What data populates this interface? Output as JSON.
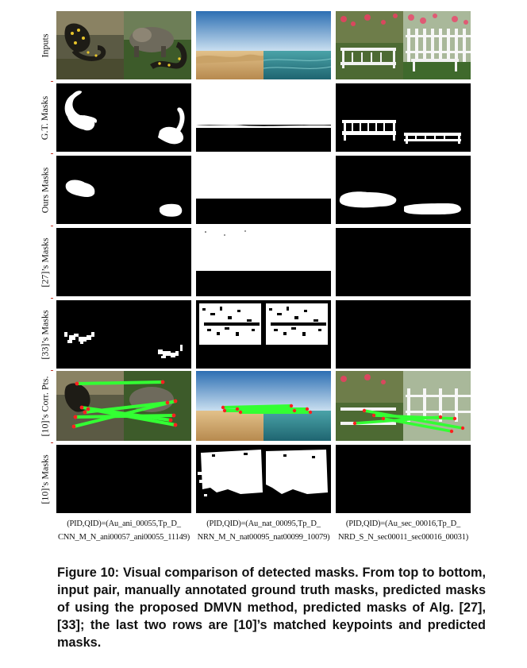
{
  "figure": {
    "rows": [
      {
        "key": "inputs",
        "label": "Inputs"
      },
      {
        "key": "gt",
        "label": "G.T. Masks"
      },
      {
        "key": "ours",
        "label": "Ours Masks"
      },
      {
        "key": "m27",
        "label": "[27]’s Masks"
      },
      {
        "key": "m33",
        "label": "[33]’s Masks"
      },
      {
        "key": "corr10",
        "label": "[10]’s Corr. Pts."
      },
      {
        "key": "m10",
        "label": "[10]’s Masks"
      }
    ],
    "columns": [
      {
        "key": "animal",
        "caption_line1": "(PID,QID)=(Au_ani_00055,Tp_D_",
        "caption_line2": "CNN_M_N_ani00057_ani00055_11149)"
      },
      {
        "key": "nature",
        "caption_line1": "(PID,QID)=(Au_nat_00095,Tp_D_",
        "caption_line2": "NRN_M_N_nat00095_nat00099_10079)"
      },
      {
        "key": "garden",
        "caption_line1": "(PID,QID)=(Au_sec_00016,Tp_D_",
        "caption_line2": "NRD_S_N_sec00011_sec00016_00031)"
      }
    ],
    "colors": {
      "mask_fg": "#ffffff",
      "mask_bg": "#000000",
      "keypoint": "#ff2020",
      "match_line": "#33ff33",
      "label_tick": "#c0392b"
    }
  },
  "caption": {
    "label": "Figure 10:",
    "text": "Visual comparison of detected masks. From top to bottom, input pair, manually annotated ground truth masks, predicted masks of using the proposed DMVN method, predicted masks of Alg. [27], [33]; the last two rows are [10]’s matched keypoints and predicted masks."
  }
}
